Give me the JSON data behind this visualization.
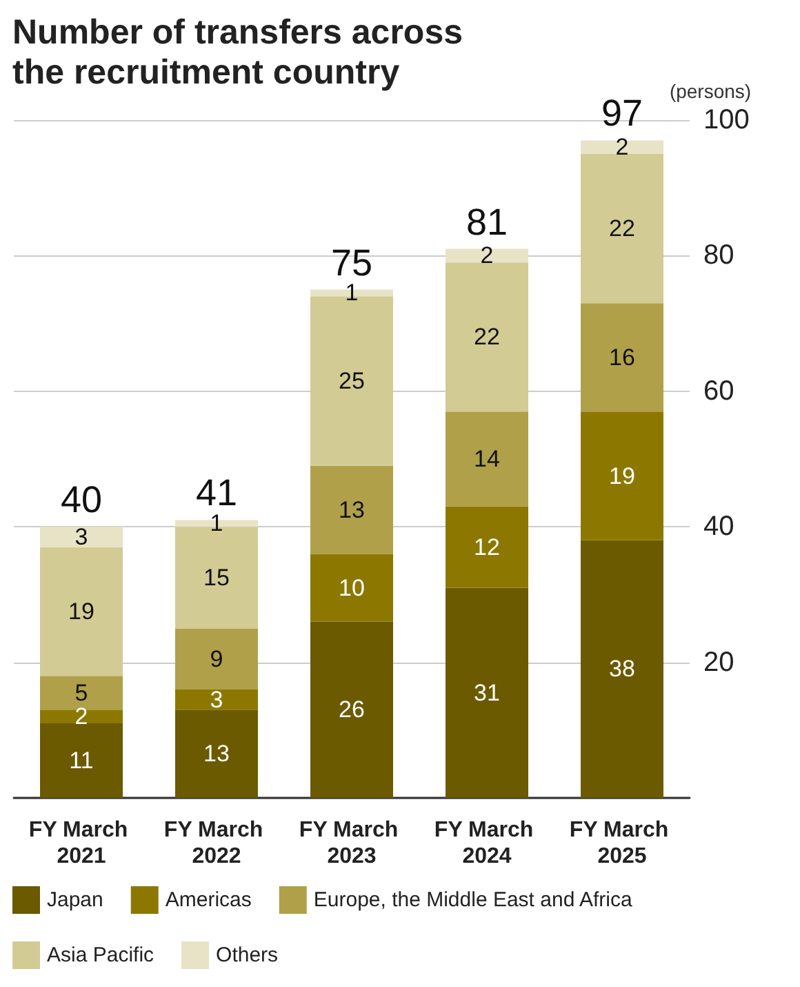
{
  "chart_data": {
    "type": "bar",
    "title": "Number of transfers across the recruitment country",
    "ylabel": "(persons)",
    "categories": [
      "FY March 2021",
      "FY March 2022",
      "FY March 2023",
      "FY March 2024",
      "FY March 2025"
    ],
    "stacked": true,
    "series": [
      {
        "name": "Japan",
        "color": "#6b5a00",
        "values": [
          11,
          13,
          26,
          31,
          38
        ]
      },
      {
        "name": "Americas",
        "color": "#8c7800",
        "values": [
          2,
          3,
          10,
          12,
          19
        ]
      },
      {
        "name": "Europe, the Middle East and Africa",
        "color": "#b0a04a",
        "values": [
          5,
          9,
          13,
          14,
          16
        ]
      },
      {
        "name": "Asia Pacific",
        "color": "#d3cb94",
        "values": [
          19,
          15,
          25,
          22,
          22
        ]
      },
      {
        "name": "Others",
        "color": "#e8e3c6",
        "values": [
          3,
          1,
          1,
          2,
          2
        ]
      }
    ],
    "totals": [
      "40",
      "41",
      "75",
      "81",
      "97"
    ],
    "ylim": [
      0,
      100
    ],
    "yticks": [
      {
        "value": 0,
        "label": null
      },
      20,
      40,
      60,
      80,
      100
    ],
    "grid": "y",
    "legend": "bottom",
    "data_labels": true
  }
}
